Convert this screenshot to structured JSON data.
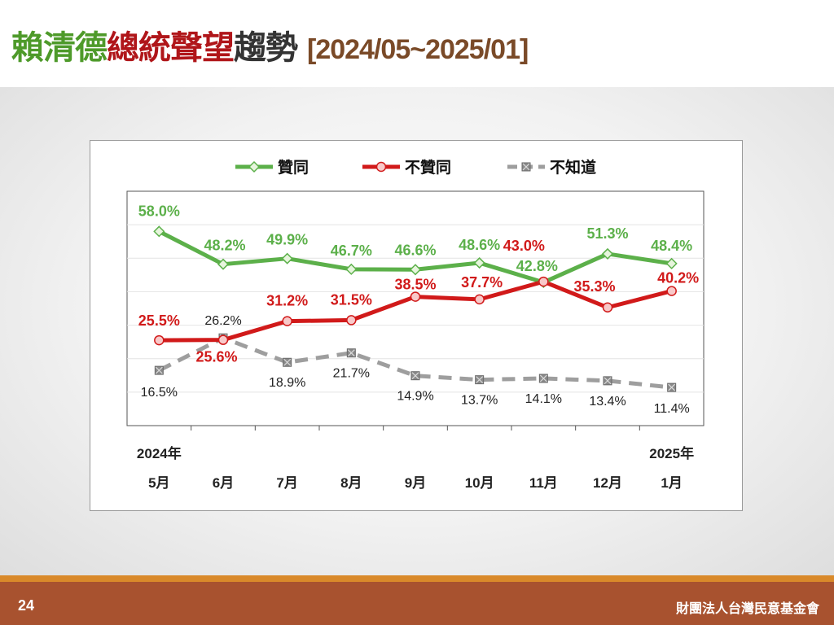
{
  "header": {
    "title_part1": "賴清德",
    "title_part2": "總統聲望",
    "title_part3": "趨勢",
    "title_range": "[2024/05~2025/01]"
  },
  "footer": {
    "page_number": "24",
    "organization": "財團法人台灣民意基金會"
  },
  "chart_data": {
    "type": "line",
    "categories": [
      "5月",
      "6月",
      "7月",
      "8月",
      "9月",
      "10月",
      "11月",
      "12月",
      "1月"
    ],
    "year_labels": {
      "start": "2024年",
      "end": "2025年"
    },
    "ylim": [
      0,
      70
    ],
    "grid": true,
    "legend_position": "top",
    "series": [
      {
        "name": "贊同",
        "color": "#5cb04a",
        "marker": "diamond",
        "dashed": false,
        "values": [
          58.0,
          48.2,
          49.9,
          46.7,
          46.6,
          48.6,
          42.8,
          51.3,
          48.4
        ],
        "labels": [
          "58.0%",
          "48.2%",
          "49.9%",
          "46.7%",
          "46.6%",
          "48.6%",
          "42.8%",
          "51.3%",
          "48.4%"
        ]
      },
      {
        "name": "不贊同",
        "color": "#d11a1a",
        "marker": "circle",
        "dashed": false,
        "values": [
          25.5,
          25.6,
          31.2,
          31.5,
          38.5,
          37.7,
          43.0,
          35.3,
          40.2
        ],
        "labels": [
          "25.5%",
          "25.6%",
          "31.2%",
          "31.5%",
          "38.5%",
          "37.7%",
          "43.0%",
          "35.3%",
          "40.2%"
        ]
      },
      {
        "name": "不知道",
        "color": "#9e9e9e",
        "marker": "square-x",
        "dashed": true,
        "values": [
          16.5,
          26.2,
          18.9,
          21.7,
          14.9,
          13.7,
          14.1,
          13.4,
          11.4
        ],
        "labels": [
          "16.5%",
          "26.2%",
          "18.9%",
          "21.7%",
          "14.9%",
          "13.7%",
          "14.1%",
          "13.4%",
          "11.4%"
        ]
      }
    ]
  }
}
